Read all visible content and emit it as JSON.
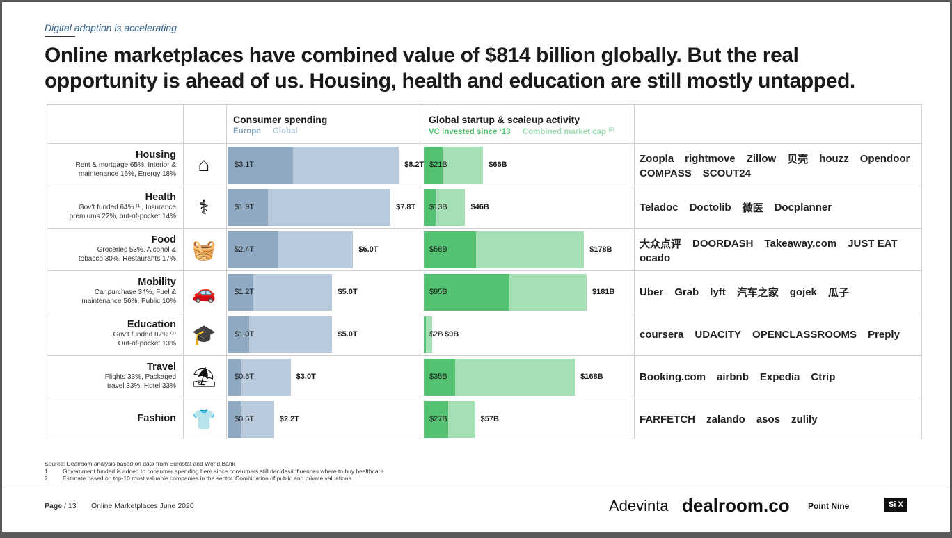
{
  "kicker": "Digital adoption is accelerating",
  "headline": "Online marketplaces have combined value of $814 billion globally. But the real opportunity is ahead of us. Housing, health and education are still mostly untapped.",
  "headers": {
    "consumer_title": "Consumer spending",
    "consumer_legend_europe": "Europe",
    "consumer_legend_global": "Global",
    "startup_title": "Global startup & scaleup activity",
    "startup_legend_vc": "VC invested since ‘13",
    "startup_legend_mc": "Combined market cap",
    "startup_legend_mc_note": "(2)"
  },
  "chart_data": [
    {
      "type": "bar",
      "title": "Consumer spending",
      "categories": [
        "Housing",
        "Health",
        "Food",
        "Mobility",
        "Education",
        "Travel",
        "Fashion"
      ],
      "series": [
        {
          "name": "Europe",
          "values": [
            3.1,
            1.9,
            2.4,
            1.2,
            1.0,
            0.6,
            0.6
          ],
          "labels": [
            "$3.1T",
            "$1.9T",
            "$2.4T",
            "$1.2T",
            "$1.0T",
            "$0.6T",
            "$0.6T"
          ]
        },
        {
          "name": "Global",
          "values": [
            8.2,
            7.8,
            6.0,
            5.0,
            5.0,
            3.0,
            2.2
          ],
          "labels": [
            "$8.2T",
            "$7.8T",
            "$6.0T",
            "$5.0T",
            "$5.0T",
            "$3.0T",
            "$2.2T"
          ]
        }
      ],
      "unit": "$T",
      "xlim": [
        0,
        9.2
      ]
    },
    {
      "type": "bar",
      "title": "Global startup & scaleup activity",
      "categories": [
        "Housing",
        "Health",
        "Food",
        "Mobility",
        "Education",
        "Travel",
        "Fashion"
      ],
      "series": [
        {
          "name": "VC invested since ‘13",
          "values": [
            21,
            13,
            58,
            95,
            2,
            35,
            27
          ],
          "labels": [
            "$21B",
            "$13B",
            "$58B",
            "$95B",
            "$2B",
            "$35B",
            "$27B"
          ]
        },
        {
          "name": "Combined market cap",
          "values": [
            66,
            46,
            178,
            181,
            9,
            168,
            57
          ],
          "labels": [
            "$66B",
            "$46B",
            "$178B",
            "$181B",
            "$9B",
            "$168B",
            "$57B"
          ]
        }
      ],
      "unit": "$B",
      "xlim": [
        0,
        229
      ]
    }
  ],
  "rows": [
    {
      "name": "Housing",
      "desc1": "Rent & mortgage 65%, Interior &",
      "desc2": "maintenance 16%, Energy 18%",
      "icon": "house-icon",
      "glyph": "⌂",
      "logos": [
        "Zoopla",
        "rightmove",
        "Zillow",
        "贝壳",
        "houzz",
        "Opendoor",
        "COMPASS",
        "SCOUT24"
      ]
    },
    {
      "name": "Health",
      "desc1": "Gov’t funded 64% ⁽¹⁾, Insurance",
      "desc2": "premiums 22%, out-of-pocket 14%",
      "icon": "doctor-icon",
      "glyph": "⚕",
      "logos": [
        "Teladoc",
        "Doctolib",
        "微医",
        "Docplanner"
      ]
    },
    {
      "name": "Food",
      "desc1": "Groceries 53%, Alcohol &",
      "desc2": "tobacco 30%, Restaurants 17%",
      "icon": "grocery-basket-icon",
      "glyph": "🧺",
      "logos": [
        "大众点评",
        "DOORDASH",
        "Takeaway.com",
        "JUST EAT",
        "ocado"
      ]
    },
    {
      "name": "Mobility",
      "desc1": "Car purchase 34%, Fuel &",
      "desc2": "maintenance 56%, Public 10%",
      "icon": "car-icon",
      "glyph": "🚗",
      "logos": [
        "Uber",
        "Grab",
        "lyft",
        "汽车之家",
        "gojek",
        "瓜子"
      ]
    },
    {
      "name": "Education",
      "desc1": "Gov’t funded 87% ⁽¹⁾",
      "desc2": "Out-of-pocket 13%",
      "icon": "graduate-icon",
      "glyph": "🎓",
      "logos": [
        "coursera",
        "UDACITY",
        "OPENCLASSROOMS",
        "Preply"
      ]
    },
    {
      "name": "Travel",
      "desc1": "Flights 33%, Packaged",
      "desc2": "travel 33%, Hotel 33%",
      "icon": "beach-umbrella-icon",
      "glyph": "⛱",
      "logos": [
        "Booking.com",
        "airbnb",
        "Expedia",
        "Ctrip"
      ]
    },
    {
      "name": "Fashion",
      "desc1": "",
      "desc2": "",
      "icon": "tshirt-icon",
      "glyph": "👕",
      "logos": [
        "FARFETCH",
        "zalando",
        "asos",
        "zulily"
      ]
    }
  ],
  "footnotes": {
    "source": "Source: Dealroom analysis based on data from Eurostat and World Bank",
    "n1_num": "1.",
    "n1": "Government funded is added to consumer spending here since consumers still decides/influences where to buy healthcare",
    "n2_num": "2.",
    "n2": "Estimate based on top-10 most valuable companies in the sector. Combination of public and private valuations"
  },
  "footer": {
    "page_label": "Page",
    "page_number": "/ 13",
    "doc_title": "Online Marketplaces June 2020",
    "logo_adevinta": "Adevinta",
    "logo_dealroom": "dealroom.co",
    "logo_pointnine": "Point Nine",
    "logo_six": "Si X"
  }
}
